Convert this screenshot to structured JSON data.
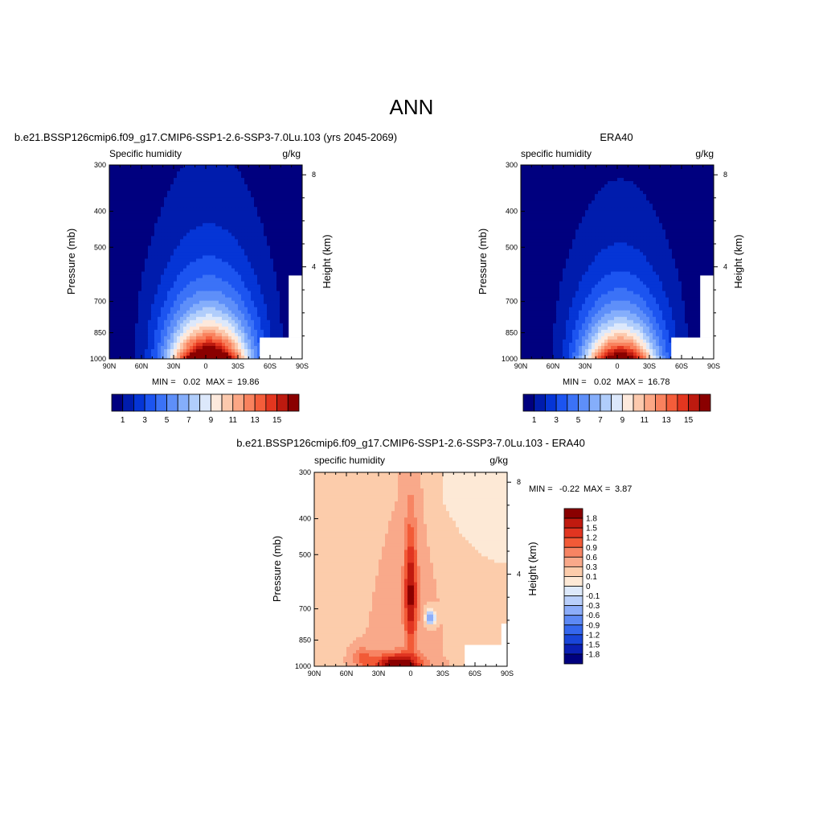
{
  "figure_title": "ANN",
  "colors": {
    "main_scale": [
      "#00007f",
      "#001cad",
      "#0535d6",
      "#1c54f0",
      "#3b72f7",
      "#5e8ff9",
      "#85aefb",
      "#b0cdfb",
      "#dce8fb",
      "#fde9dc",
      "#fcc9ad",
      "#fca785",
      "#f9825e",
      "#f45d3a",
      "#e3361f",
      "#bd1a0f",
      "#8a0000"
    ],
    "diff_scale": [
      "#00007f",
      "#0b1fb3",
      "#1945d9",
      "#3567ee",
      "#5d89f5",
      "#8cadfa",
      "#b9cffb",
      "#dde9fb",
      "#fde9d6",
      "#fcccab",
      "#f9a98a",
      "#f78463",
      "#f25a37",
      "#e13521",
      "#c01a0f",
      "#8a0000"
    ]
  },
  "chart_data": [
    {
      "type": "heatmap",
      "case_title": "b.e21.BSSP126cmip6.f09_g17.CMIP6-SSP1-2.6-SSP3-7.0Lu.103 (yrs 2045-2069)",
      "left_label": "Specific humidity",
      "right_label": "g/kg",
      "xlabel": "",
      "ylabel": "Pressure (mb)",
      "y2label": "Height (km)",
      "x_ticks": [
        "90N",
        "60N",
        "30N",
        "0",
        "30S",
        "60S",
        "90S"
      ],
      "y_ticks": [
        "300",
        "400",
        "500",
        "700",
        "850",
        "1000"
      ],
      "y2_ticks": [
        "8",
        "4"
      ],
      "min_label": "MIN =",
      "min_value": "0.02",
      "max_label": "MAX =",
      "max_value": "19.86",
      "colorbar_labels": [
        "1",
        "3",
        "5",
        "7",
        "9",
        "11",
        "13",
        "15"
      ],
      "field": {
        "peak_lat": 3,
        "peak_value": 19.86,
        "surface_width_deg": 26,
        "tropo_top_mb": 370,
        "background": 0.02
      }
    },
    {
      "type": "heatmap",
      "case_title": "ERA40",
      "left_label": "specific humidity",
      "right_label": "g/kg",
      "xlabel": "",
      "ylabel": "Pressure (mb)",
      "y2label": "Height (km)",
      "x_ticks": [
        "90N",
        "60N",
        "30N",
        "0",
        "30S",
        "60S",
        "90S"
      ],
      "y_ticks": [
        "300",
        "400",
        "500",
        "700",
        "850",
        "1000"
      ],
      "y2_ticks": [
        "8",
        "4"
      ],
      "min_label": "MIN =",
      "min_value": "0.02",
      "max_label": "MAX =",
      "max_value": "16.78",
      "colorbar_labels": [
        "1",
        "3",
        "5",
        "7",
        "9",
        "11",
        "13",
        "15"
      ],
      "field": {
        "peak_lat": 3,
        "peak_value": 16.78,
        "surface_width_deg": 24,
        "tropo_top_mb": 390,
        "background": 0.02
      }
    },
    {
      "type": "heatmap",
      "case_title": "b.e21.BSSP126cmip6.f09_g17.CMIP6-SSP1-2.6-SSP3-7.0Lu.103 - ERA40",
      "left_label": "specific humidity",
      "right_label": "g/kg",
      "xlabel": "",
      "ylabel": "Pressure (mb)",
      "y2label": "Height (km)",
      "x_ticks": [
        "90N",
        "60N",
        "30N",
        "0",
        "30S",
        "60S",
        "90S"
      ],
      "y_ticks": [
        "300",
        "400",
        "500",
        "700",
        "850",
        "1000"
      ],
      "y2_ticks": [
        "8",
        "4"
      ],
      "min_label": "MIN =",
      "min_value": "-0.22",
      "max_label": "MAX =",
      "max_value": "3.87",
      "colorbar_labels": [
        "1.8",
        "1.5",
        "1.2",
        "0.9",
        "0.6",
        "0.3",
        "0.1",
        "0",
        "-0.1",
        "-0.3",
        "-0.6",
        "-0.9",
        "-1.2",
        "-1.5",
        "-1.8"
      ],
      "field": {
        "max": 3.87,
        "min": -0.22
      }
    }
  ]
}
